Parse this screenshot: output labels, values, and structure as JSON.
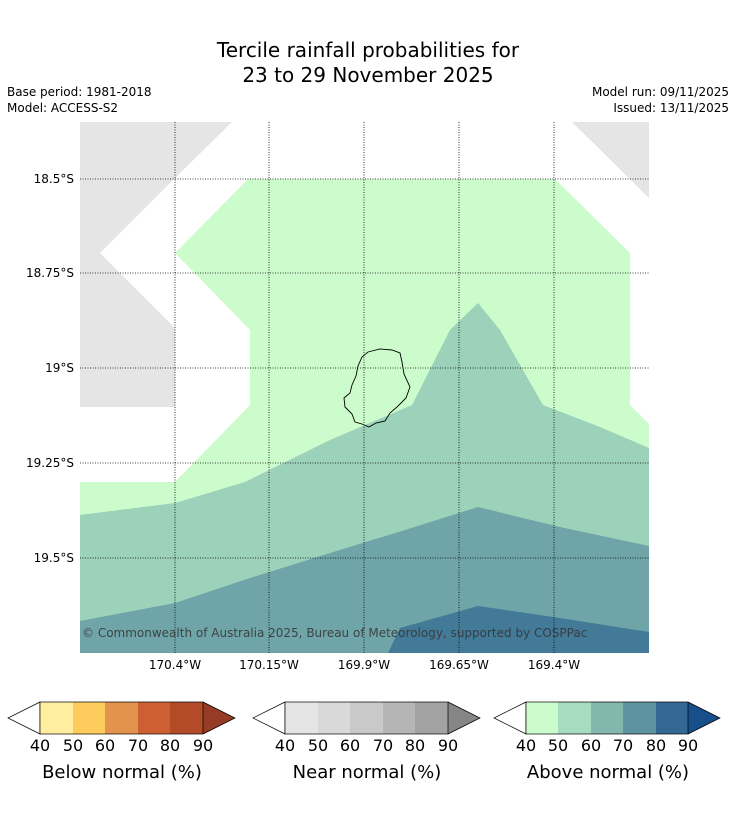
{
  "title": {
    "line1": "Tercile rainfall probabilities for",
    "line2": "23 to 29 November 2025"
  },
  "meta": {
    "base_period": "Base period: 1981-2018",
    "model": "Model: ACCESS-S2",
    "model_run": "Model run: 09/11/2025",
    "issued": "Issued: 13/11/2025"
  },
  "map": {
    "latitude_labels": [
      "18.5°S",
      "18.75°S",
      "19°S",
      "19.25°S",
      "19.5°S"
    ],
    "longitude_labels": [
      "170.4°W",
      "170.15°W",
      "169.9°W",
      "169.65°W",
      "169.4°W"
    ],
    "copyright": "© Commonwealth of Australia 2025, Bureau of Meteorology, supported by COSPPac",
    "colors": {
      "no_data": "#e5e5e5",
      "above_50": "#ccfccc",
      "above_60": "#9dd2ba",
      "above_70": "#6fa5a8",
      "above_80": "#437a98",
      "coastline": "#000000"
    }
  },
  "colorbars": [
    {
      "title": "Below normal (%)",
      "ticks": [
        "40",
        "50",
        "60",
        "70",
        "80",
        "90"
      ],
      "colors": [
        "#ffeda0",
        "#fecc5c",
        "#e3944c",
        "#cd5f32",
        "#b34a28",
        "#963b26"
      ]
    },
    {
      "title": "Near normal (%)",
      "ticks": [
        "40",
        "50",
        "60",
        "70",
        "80",
        "90"
      ],
      "colors": [
        "#e5e5e5",
        "#d9d9d9",
        "#c9c9c9",
        "#b5b5b5",
        "#a2a2a2",
        "#868686"
      ]
    },
    {
      "title": "Above normal (%)",
      "ticks": [
        "40",
        "50",
        "60",
        "70",
        "80",
        "90"
      ],
      "colors": [
        "#ccfccc",
        "#a6dcc0",
        "#82b7ad",
        "#5e93a1",
        "#356795",
        "#174f8a"
      ]
    }
  ]
}
